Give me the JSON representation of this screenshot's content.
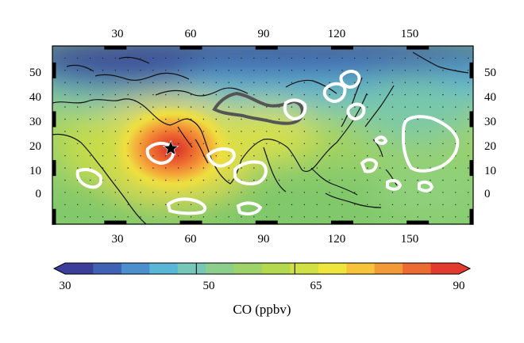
{
  "map": {
    "lon_ticks": [
      "30",
      "60",
      "90",
      "120",
      "150"
    ],
    "lat_ticks": [
      "50",
      "40",
      "30",
      "20",
      "10",
      "0"
    ],
    "lon_range": [
      5,
      172
    ],
    "lat_range": [
      -13,
      60
    ],
    "marker": {
      "name": "star",
      "lon": 52,
      "lat": 18
    }
  },
  "colorbar": {
    "labels": [
      "30",
      "50",
      "65",
      "90"
    ],
    "values": [
      30,
      50,
      65,
      90
    ],
    "title": "CO (ppbv)",
    "colors": [
      "#3b3f9a",
      "#3f62b4",
      "#4b8fcd",
      "#5ab6d6",
      "#76c7b8",
      "#8ccf8c",
      "#9fd36a",
      "#b4d94e",
      "#d1e045",
      "#efe63d",
      "#f6c33a",
      "#f29a38",
      "#ec6b33",
      "#e23a2d"
    ]
  }
}
